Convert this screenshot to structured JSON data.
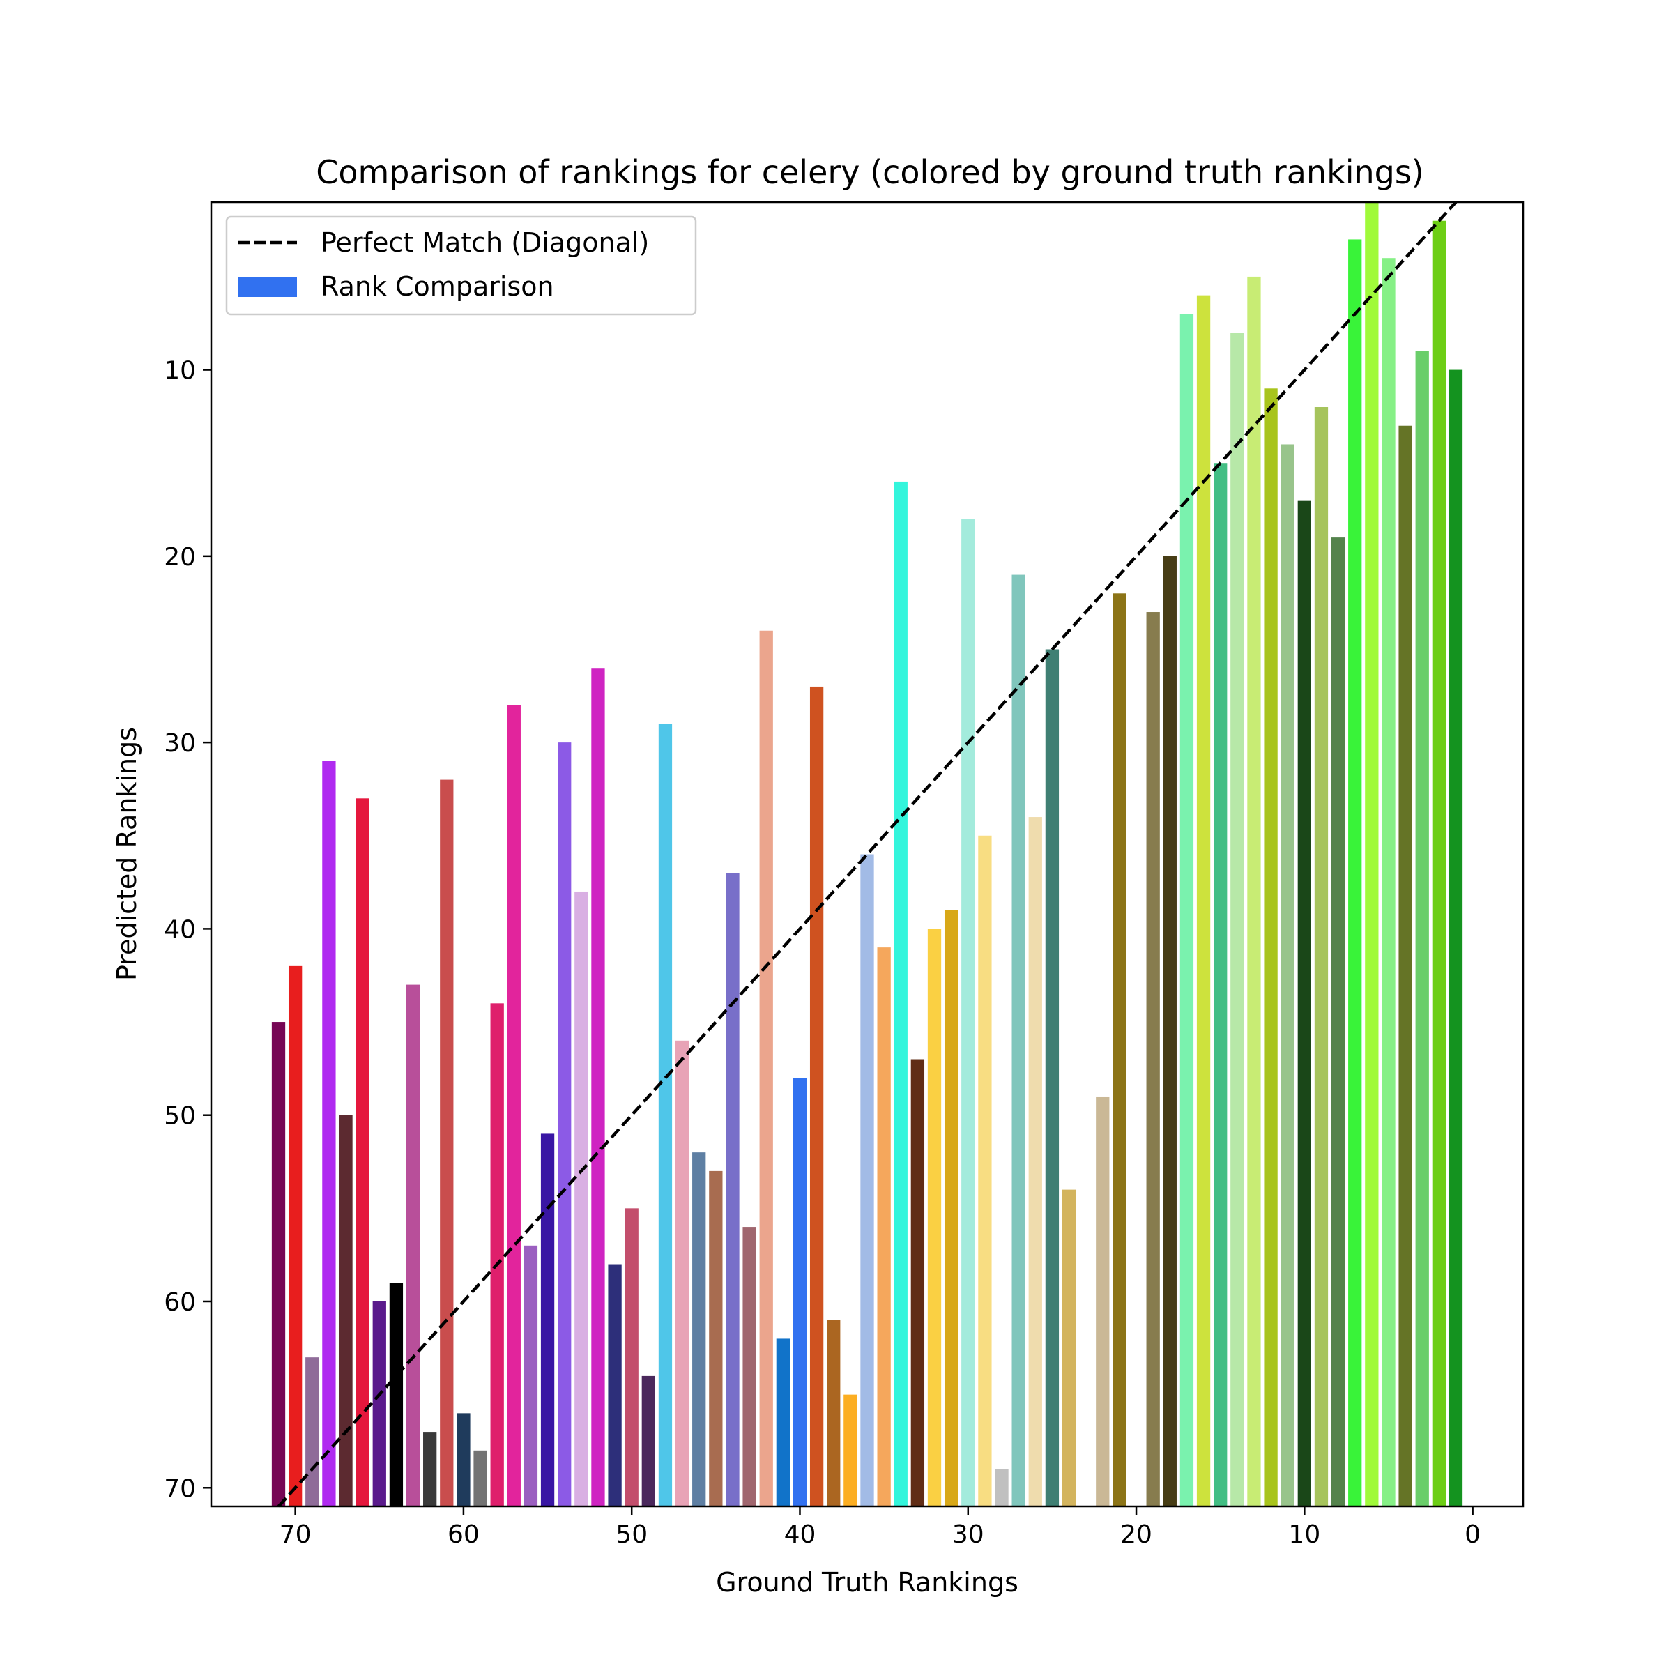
{
  "chart_data": {
    "type": "bar",
    "title": "Comparison of rankings for celery (colored by ground truth rankings)",
    "xlabel": "Ground Truth Rankings",
    "ylabel": "Predicted Rankings",
    "xlim": [
      75,
      -3
    ],
    "ylim": [
      71,
      1
    ],
    "x_axis_inverted": true,
    "y_axis_inverted": true,
    "x_ticks": [
      70,
      60,
      50,
      40,
      30,
      20,
      10,
      0
    ],
    "y_ticks": [
      10,
      20,
      30,
      40,
      50,
      60,
      70
    ],
    "grid": false,
    "legend": {
      "placement": "top-left",
      "entries": [
        {
          "label": "Perfect Match (Diagonal)",
          "style": "dashed-line",
          "color": "#000000"
        },
        {
          "label": "Rank Comparison",
          "style": "patch",
          "color": "#3171f0"
        }
      ]
    },
    "diagonal": {
      "from": [
        71,
        71
      ],
      "to": [
        0,
        0
      ],
      "style": "dashed",
      "color": "#000000"
    },
    "bar_bottom": 71,
    "bars": [
      {
        "x": 71,
        "y": 45,
        "color": "#770655"
      },
      {
        "x": 70,
        "y": 42,
        "color": "#e81e1e"
      },
      {
        "x": 69,
        "y": 63,
        "color": "#8f6c99"
      },
      {
        "x": 68,
        "y": 31,
        "color": "#b02af0"
      },
      {
        "x": 67,
        "y": 50,
        "color": "#5c2a30"
      },
      {
        "x": 66,
        "y": 33,
        "color": "#e5173d"
      },
      {
        "x": 65,
        "y": 60,
        "color": "#5a1a8c"
      },
      {
        "x": 64,
        "y": 59,
        "color": "#000000"
      },
      {
        "x": 63,
        "y": 43,
        "color": "#b84f9a"
      },
      {
        "x": 62,
        "y": 67,
        "color": "#3a3a3a"
      },
      {
        "x": 61,
        "y": 32,
        "color": "#c94d4d"
      },
      {
        "x": 60,
        "y": 66,
        "color": "#1f3b5c"
      },
      {
        "x": 59,
        "y": 68,
        "color": "#737373"
      },
      {
        "x": 58,
        "y": 44,
        "color": "#df1f6c"
      },
      {
        "x": 57,
        "y": 28,
        "color": "#e2249c"
      },
      {
        "x": 56,
        "y": 57,
        "color": "#9b5fc0"
      },
      {
        "x": 55,
        "y": 51,
        "color": "#3916a4"
      },
      {
        "x": 54,
        "y": 30,
        "color": "#8c5ae6"
      },
      {
        "x": 53,
        "y": 38,
        "color": "#d9afe3"
      },
      {
        "x": 52,
        "y": 26,
        "color": "#cf24c2"
      },
      {
        "x": 51,
        "y": 58,
        "color": "#2d2f7a"
      },
      {
        "x": 50,
        "y": 55,
        "color": "#c34e6c"
      },
      {
        "x": 49,
        "y": 64,
        "color": "#4a285c"
      },
      {
        "x": 48,
        "y": 29,
        "color": "#4fc6e9"
      },
      {
        "x": 47,
        "y": 46,
        "color": "#e8a3b6"
      },
      {
        "x": 46,
        "y": 52,
        "color": "#5e7fa3"
      },
      {
        "x": 45,
        "y": 53,
        "color": "#a86c50"
      },
      {
        "x": 44,
        "y": 37,
        "color": "#786fc9"
      },
      {
        "x": 43,
        "y": 56,
        "color": "#a0666e"
      },
      {
        "x": 42,
        "y": 24,
        "color": "#eba58d"
      },
      {
        "x": 41,
        "y": 62,
        "color": "#1173c9"
      },
      {
        "x": 40,
        "y": 48,
        "color": "#3171f0"
      },
      {
        "x": 39,
        "y": 27,
        "color": "#cf5220"
      },
      {
        "x": 38,
        "y": 61,
        "color": "#ab6621"
      },
      {
        "x": 37,
        "y": 65,
        "color": "#fcae22"
      },
      {
        "x": 36,
        "y": 36,
        "color": "#a2bbe6"
      },
      {
        "x": 35,
        "y": 41,
        "color": "#f5a75c"
      },
      {
        "x": 34,
        "y": 16,
        "color": "#33f5dc"
      },
      {
        "x": 33,
        "y": 47,
        "color": "#612d16"
      },
      {
        "x": 32,
        "y": 40,
        "color": "#fad043"
      },
      {
        "x": 31,
        "y": 39,
        "color": "#d8a818"
      },
      {
        "x": 30,
        "y": 18,
        "color": "#a3ebdc"
      },
      {
        "x": 29,
        "y": 35,
        "color": "#f8dd82"
      },
      {
        "x": 28,
        "y": 69,
        "color": "#c0c0c0"
      },
      {
        "x": 27,
        "y": 21,
        "color": "#80c6bc"
      },
      {
        "x": 26,
        "y": 34,
        "color": "#efdcad"
      },
      {
        "x": 25,
        "y": 25,
        "color": "#3f7f73"
      },
      {
        "x": 24,
        "y": 54,
        "color": "#d3b45e"
      },
      {
        "x": 22,
        "y": 49,
        "color": "#cab896"
      },
      {
        "x": 21,
        "y": 22,
        "color": "#8c7417"
      },
      {
        "x": 19,
        "y": 23,
        "color": "#877c4e"
      },
      {
        "x": 18,
        "y": 20,
        "color": "#473d15"
      },
      {
        "x": 17,
        "y": 7,
        "color": "#7af2ae"
      },
      {
        "x": 16,
        "y": 6,
        "color": "#cde23d"
      },
      {
        "x": 15,
        "y": 15,
        "color": "#42be84"
      },
      {
        "x": 14,
        "y": 8,
        "color": "#b7e8a8"
      },
      {
        "x": 13,
        "y": 5,
        "color": "#c8ec74"
      },
      {
        "x": 12,
        "y": 11,
        "color": "#a8c41c"
      },
      {
        "x": 11,
        "y": 14,
        "color": "#98c48b"
      },
      {
        "x": 10,
        "y": 17,
        "color": "#1a4718"
      },
      {
        "x": 9,
        "y": 12,
        "color": "#a6c45c"
      },
      {
        "x": 8,
        "y": 19,
        "color": "#54834c"
      },
      {
        "x": 7,
        "y": 3,
        "color": "#39f339"
      },
      {
        "x": 6,
        "y": 1,
        "color": "#a0fa3a"
      },
      {
        "x": 5,
        "y": 4,
        "color": "#86f086"
      },
      {
        "x": 4,
        "y": 13,
        "color": "#657426"
      },
      {
        "x": 3,
        "y": 9,
        "color": "#6ace6a"
      },
      {
        "x": 2,
        "y": 2,
        "color": "#6dce15"
      },
      {
        "x": 1,
        "y": 10,
        "color": "#14931f"
      }
    ]
  }
}
